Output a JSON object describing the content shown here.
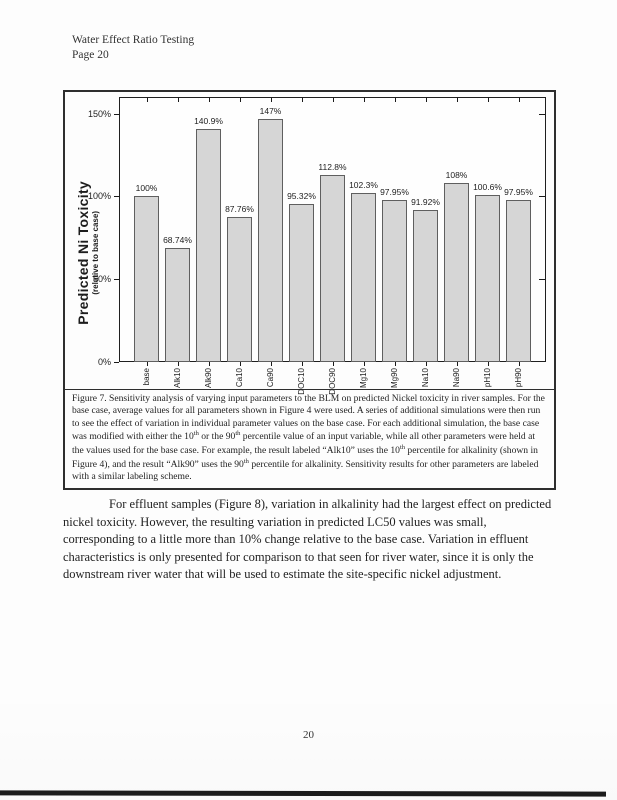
{
  "header": {
    "line1": "Water Effect Ratio Testing",
    "line2": "Page 20"
  },
  "chart_data": {
    "type": "bar",
    "title": "",
    "categories": [
      "base",
      "Alk10",
      "Alk90",
      "Ca10",
      "Ca90",
      "DOC10",
      "DOC90",
      "Mg10",
      "Mg90",
      "Na10",
      "Na90",
      "pH10",
      "pH90"
    ],
    "values": [
      100,
      68.74,
      140.9,
      87.76,
      147,
      95.32,
      112.8,
      102.3,
      97.95,
      91.92,
      108,
      100.6,
      97.95
    ],
    "value_labels": [
      "100%",
      "68.74%",
      "140.9%",
      "87.76%",
      "147%",
      "95.32%",
      "112.8%",
      "102.3%",
      "97.95%",
      "91.92%",
      "108%",
      "100.6%",
      "97.95%"
    ],
    "ylabel": "Predicted Ni Toxicity",
    "ylabel_sub": "(relative to base case)",
    "yticks": [
      0,
      50,
      100,
      150
    ],
    "ytick_labels": [
      "0%",
      "50%",
      "100%",
      "150%"
    ],
    "ylim": [
      0,
      160
    ],
    "grid": false,
    "legend_position": "none",
    "bar_color": "#d6d6d6",
    "bar_border_color": "#5f5f5f",
    "axis_color": "#1a1a1a"
  },
  "figure_caption": {
    "segments": [
      {
        "t": "Figure 7.  Sensitivity analysis of varying input parameters to the BLM on predicted Nickel toxicity in river samples. For the base case, average values for all parameters shown in Figure 4 were used.   A series of additional simulations were then run to see the effect of variation in individual parameter values on the base case. For each additional simulation, the base case was modified with either the 10",
        "sup": false
      },
      {
        "t": "th",
        "sup": true
      },
      {
        "t": " or the 90",
        "sup": false
      },
      {
        "t": "th",
        "sup": true
      },
      {
        "t": " percentile value of an input variable, while all other parameters were held at the values used for the base case.  For example, the result labeled “Alk10” uses the 10",
        "sup": false
      },
      {
        "t": "th",
        "sup": true
      },
      {
        "t": " percentile for alkalinity (shown in Figure 4), and the result “Alk90” uses the 90",
        "sup": false
      },
      {
        "t": "th",
        "sup": true
      },
      {
        "t": " percentile for alkalinity. Sensitivity results for other parameters are labeled with a similar labeling scheme.",
        "sup": false
      }
    ]
  },
  "body": {
    "paragraph": "For effluent samples (Figure 8), variation in alkalinity had the largest effect on predicted nickel toxicity.  However, the resulting variation in predicted LC50 values was small, corresponding to a little more than 10% change relative to the base case.  Variation in effluent characteristics is only presented for comparison to that seen for river water, since it is only the downstream river water that will be used to estimate the site-specific nickel adjustment."
  },
  "footer": {
    "page_number": "20"
  }
}
